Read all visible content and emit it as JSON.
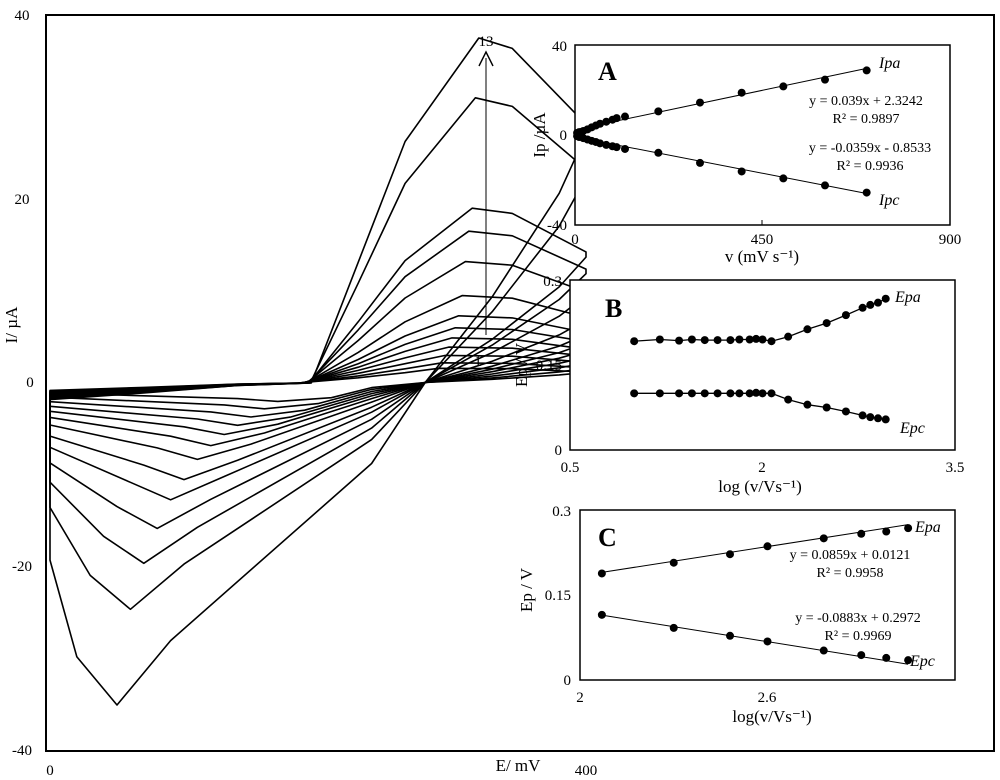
{
  "chart_data": [
    {
      "id": "cv",
      "type": "line",
      "xlabel": "E/ mV",
      "ylabel": "I/ µA",
      "xlim": [
        0,
        400
      ],
      "ylim": [
        -40,
        40
      ],
      "x_ticks": [
        "0",
        "400"
      ],
      "y_ticks": [
        "40",
        "20",
        "0",
        "-20",
        "-40"
      ],
      "scan_labels": {
        "first": "1",
        "last": "13"
      },
      "curves": [
        {
          "anodic_peak": 1.6,
          "cathodic_peak": -2.0
        },
        {
          "anodic_peak": 2.2,
          "cathodic_peak": -2.8
        },
        {
          "anodic_peak": 3.0,
          "cathodic_peak": -3.7
        },
        {
          "anodic_peak": 3.9,
          "cathodic_peak": -4.6
        },
        {
          "anodic_peak": 4.9,
          "cathodic_peak": -5.6
        },
        {
          "anodic_peak": 6.0,
          "cathodic_peak": -6.8
        },
        {
          "anodic_peak": 7.3,
          "cathodic_peak": -8.3
        },
        {
          "anodic_peak": 9.5,
          "cathodic_peak": -10.5
        },
        {
          "anodic_peak": 13.2,
          "cathodic_peak": -12.7
        },
        {
          "anodic_peak": 16.5,
          "cathodic_peak": -15.8
        },
        {
          "anodic_peak": 19.0,
          "cathodic_peak": -19.6
        },
        {
          "anodic_peak": 31.0,
          "cathodic_peak": -24.6
        },
        {
          "anodic_peak": 37.5,
          "cathodic_peak": -35.0
        }
      ]
    },
    {
      "id": "A",
      "type": "scatter",
      "panel": "A",
      "xlabel": "v (mV s⁻¹)",
      "ylabel": "Ip /µA",
      "xlim": [
        0,
        900
      ],
      "ylim": [
        -40,
        40
      ],
      "x_ticks": [
        "0",
        "450",
        "900"
      ],
      "y_ticks": [
        "40",
        "0",
        "-40"
      ],
      "series": [
        {
          "name": "Ipa",
          "x": [
            5,
            10,
            20,
            30,
            40,
            50,
            60,
            75,
            90,
            100,
            120,
            200,
            300,
            400,
            500,
            600,
            700
          ],
          "y": [
            0.9,
            1.3,
            1.8,
            2.5,
            3.4,
            4.2,
            5.0,
            5.9,
            6.8,
            7.5,
            8.2,
            10.5,
            14.4,
            18.8,
            21.6,
            24.6,
            28.7
          ],
          "equation": "y = 0.039x + 2.3242",
          "r2": "R² = 0.9897"
        },
        {
          "name": "Ipc",
          "x": [
            5,
            10,
            20,
            30,
            40,
            50,
            60,
            75,
            90,
            100,
            120,
            200,
            300,
            400,
            500,
            600,
            700
          ],
          "y": [
            -0.5,
            -0.9,
            -1.4,
            -2.0,
            -2.6,
            -3.1,
            -3.7,
            -4.4,
            -5.0,
            -5.4,
            -6.2,
            -7.9,
            -12.4,
            -16.2,
            -19.3,
            -22.4,
            -25.6
          ],
          "equation": "y = -0.0359x - 0.8533",
          "r2": "R² = 0.9936"
        }
      ]
    },
    {
      "id": "B",
      "type": "line",
      "panel": "B",
      "xlabel": "log (v/Vs⁻¹)",
      "ylabel": "Ep / V",
      "xlim": [
        0.5,
        3.5
      ],
      "ylim": [
        0,
        0.3
      ],
      "x_ticks": [
        "0.5",
        "2",
        "3.5"
      ],
      "y_ticks": [
        "0.3",
        "0.15",
        "0"
      ],
      "series": [
        {
          "name": "Epa",
          "x": [
            1.0,
            1.2,
            1.35,
            1.45,
            1.55,
            1.65,
            1.75,
            1.82,
            1.9,
            1.95,
            2.0,
            2.07,
            2.2,
            2.35,
            2.5,
            2.65,
            2.78,
            2.84,
            2.9,
            2.96
          ],
          "y": [
            0.192,
            0.195,
            0.193,
            0.195,
            0.194,
            0.194,
            0.194,
            0.195,
            0.195,
            0.196,
            0.195,
            0.192,
            0.2,
            0.213,
            0.224,
            0.238,
            0.251,
            0.256,
            0.26,
            0.267
          ]
        },
        {
          "name": "Epc",
          "x": [
            1.0,
            1.2,
            1.35,
            1.45,
            1.55,
            1.65,
            1.75,
            1.82,
            1.9,
            1.95,
            2.0,
            2.07,
            2.2,
            2.35,
            2.5,
            2.65,
            2.78,
            2.84,
            2.9,
            2.96
          ],
          "y": [
            0.1,
            0.1,
            0.1,
            0.1,
            0.1,
            0.1,
            0.1,
            0.1,
            0.1,
            0.101,
            0.1,
            0.1,
            0.089,
            0.08,
            0.075,
            0.068,
            0.061,
            0.058,
            0.056,
            0.054
          ]
        }
      ]
    },
    {
      "id": "C",
      "type": "scatter",
      "panel": "C",
      "xlabel": "log(v/Vs⁻¹)",
      "ylabel": "Ep / V",
      "xlim": [
        2,
        3.2
      ],
      "ylim": [
        0,
        0.3
      ],
      "x_ticks": [
        "2",
        "2.6"
      ],
      "y_ticks": [
        "0.3",
        "0.15",
        "0"
      ],
      "series": [
        {
          "name": "Epa",
          "x": [
            2.07,
            2.3,
            2.48,
            2.6,
            2.78,
            2.9,
            2.98,
            3.05
          ],
          "y": [
            0.188,
            0.207,
            0.222,
            0.236,
            0.25,
            0.258,
            0.262,
            0.268
          ],
          "equation": "y = 0.0859x + 0.0121",
          "r2": "R² = 0.9958"
        },
        {
          "name": "Epc",
          "x": [
            2.07,
            2.3,
            2.48,
            2.6,
            2.78,
            2.9,
            2.98,
            3.05
          ],
          "y": [
            0.115,
            0.092,
            0.078,
            0.068,
            0.052,
            0.044,
            0.039,
            0.035
          ],
          "equation": "y = -0.0883x + 0.2972",
          "r2": "R² = 0.9969"
        }
      ]
    }
  ]
}
